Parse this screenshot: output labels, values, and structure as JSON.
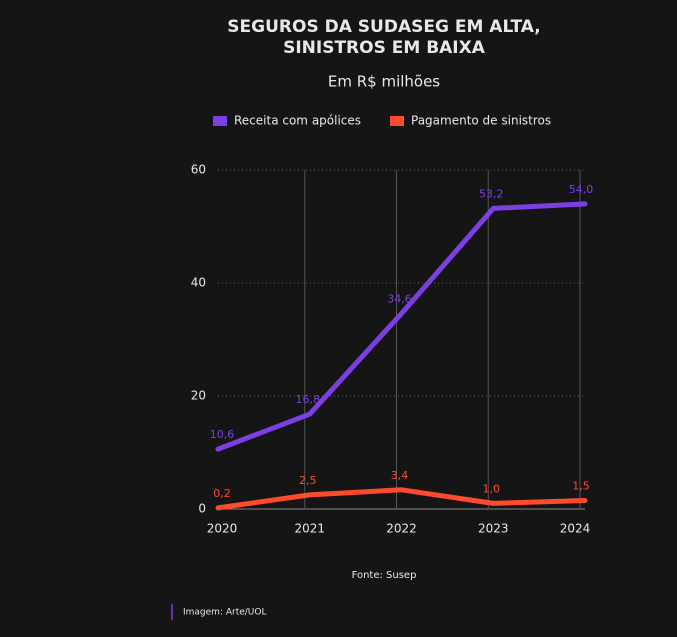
{
  "chart_data": {
    "type": "line",
    "title": [
      "SEGUROS DA SUDASEG EM ALTA,",
      "SINISTROS EM BAIXA"
    ],
    "subtitle": "Em R$ milhões",
    "categories": [
      "2020",
      "2021",
      "2022",
      "2023",
      "2024"
    ],
    "series": [
      {
        "name": "Receita com apólices",
        "color": "#7b3fe4",
        "values": [
          10.6,
          16.8,
          34.6,
          53.2,
          54.0
        ],
        "value_labels": [
          "10,6",
          "16,8",
          "34,6",
          "53,2",
          "54,0"
        ]
      },
      {
        "name": "Pagamento de sinistros",
        "color": "#ff4a2e",
        "values": [
          0.2,
          2.5,
          3.4,
          1.0,
          1.5
        ],
        "value_labels": [
          "0,2",
          "2,5",
          "3,4",
          "1,0",
          "1,5"
        ]
      }
    ],
    "ylim": [
      0,
      60
    ],
    "yticks": [
      0,
      20,
      40,
      60
    ],
    "grid": true,
    "source": "Fonte: Susep",
    "credit": "Imagem: Arte/UOL"
  }
}
